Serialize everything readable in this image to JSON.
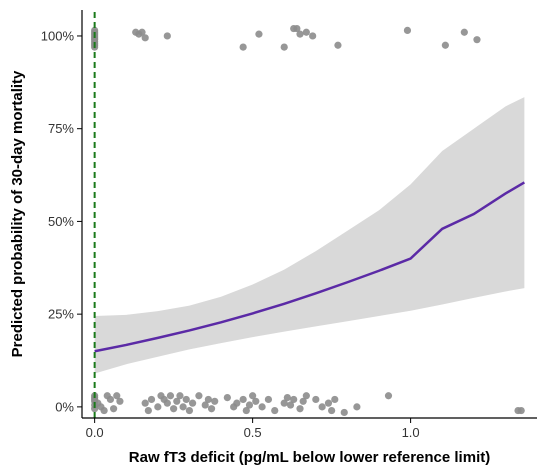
{
  "chart_data": {
    "type": "line",
    "title": "",
    "xlabel": "Raw  fT3 deficit (pg/mL below lower reference limit)",
    "ylabel": "Predicted probability of 30-day mortality",
    "xlim": [
      -0.04,
      1.4
    ],
    "ylim": [
      -0.03,
      1.07
    ],
    "x_ticks": [
      0.0,
      0.5,
      1.0
    ],
    "x_tick_labels": [
      "0.0",
      "0.5",
      "1.0"
    ],
    "y_ticks": [
      0,
      0.25,
      0.5,
      0.75,
      1.0
    ],
    "y_tick_labels": [
      "0%",
      "25%",
      "50%",
      "75%",
      "100%"
    ],
    "grid": false,
    "reference_line": {
      "x": 0.0,
      "style": "dashed",
      "color": "#1a7a1a"
    },
    "series": [
      {
        "kind": "fit",
        "color": "#5b2aa6",
        "x": [
          0.0,
          0.1,
          0.2,
          0.3,
          0.4,
          0.5,
          0.6,
          0.7,
          0.8,
          0.9,
          1.0,
          1.1,
          1.2,
          1.3,
          1.36
        ],
        "y": [
          0.15,
          0.167,
          0.186,
          0.206,
          0.228,
          0.252,
          0.278,
          0.306,
          0.336,
          0.367,
          0.4,
          0.48,
          0.52,
          0.575,
          0.605
        ],
        "ci_lower": [
          0.09,
          0.115,
          0.135,
          0.155,
          0.172,
          0.188,
          0.203,
          0.217,
          0.231,
          0.245,
          0.259,
          0.276,
          0.294,
          0.311,
          0.32
        ],
        "ci_upper": [
          0.245,
          0.248,
          0.258,
          0.273,
          0.297,
          0.33,
          0.37,
          0.42,
          0.475,
          0.53,
          0.6,
          0.69,
          0.75,
          0.81,
          0.835
        ],
        "ci_color": "#d9d9d9"
      },
      {
        "kind": "points",
        "color": "#8c8c8c",
        "outcome": 1,
        "x": [
          0.0,
          0.0,
          0.0,
          0.0,
          0.0,
          0.0,
          0.0,
          0.0,
          0.0,
          0.0,
          0.13,
          0.14,
          0.15,
          0.16,
          0.23,
          0.47,
          0.52,
          0.6,
          0.63,
          0.64,
          0.65,
          0.67,
          0.69,
          0.77,
          0.99,
          1.11,
          1.17,
          1.21
        ],
        "y": [
          1.015,
          1.005,
          0.995,
          0.985,
          0.975,
          1.01,
          0.99,
          0.98,
          1.0,
          0.97,
          1.01,
          1.005,
          1.01,
          0.995,
          1.0,
          0.97,
          1.005,
          0.97,
          1.02,
          1.02,
          1.005,
          1.01,
          1.0,
          0.975,
          1.015,
          0.975,
          1.01,
          0.99
        ]
      },
      {
        "kind": "points",
        "color": "#8c8c8c",
        "outcome": 0,
        "x": [
          0.0,
          0.0,
          0.0,
          0.0,
          0.0,
          0.0,
          0.01,
          0.02,
          0.03,
          0.04,
          0.05,
          0.06,
          0.07,
          0.08,
          0.16,
          0.17,
          0.18,
          0.2,
          0.21,
          0.22,
          0.23,
          0.24,
          0.25,
          0.26,
          0.27,
          0.28,
          0.29,
          0.3,
          0.31,
          0.33,
          0.35,
          0.36,
          0.37,
          0.38,
          0.42,
          0.44,
          0.45,
          0.47,
          0.48,
          0.49,
          0.5,
          0.51,
          0.53,
          0.55,
          0.57,
          0.6,
          0.61,
          0.62,
          0.63,
          0.65,
          0.66,
          0.67,
          0.7,
          0.72,
          0.74,
          0.75,
          0.76,
          0.79,
          0.83,
          0.93,
          1.34,
          1.35
        ],
        "y": [
          0.02,
          0.005,
          -0.005,
          0.03,
          0.015,
          0.025,
          0.01,
          0.0,
          -0.01,
          0.03,
          0.02,
          -0.005,
          0.03,
          0.015,
          0.01,
          -0.01,
          0.02,
          0.0,
          0.03,
          0.02,
          0.01,
          0.03,
          -0.005,
          0.015,
          0.03,
          0.0,
          0.02,
          -0.01,
          0.01,
          0.03,
          0.005,
          0.02,
          -0.005,
          0.015,
          0.025,
          0.0,
          0.01,
          0.02,
          -0.01,
          0.005,
          0.03,
          0.015,
          0.0,
          0.02,
          -0.01,
          0.01,
          0.025,
          0.005,
          0.02,
          -0.005,
          0.015,
          0.03,
          0.02,
          0.0,
          0.01,
          -0.01,
          0.02,
          -0.015,
          0.0,
          0.03,
          -0.01,
          -0.01
        ]
      }
    ]
  }
}
